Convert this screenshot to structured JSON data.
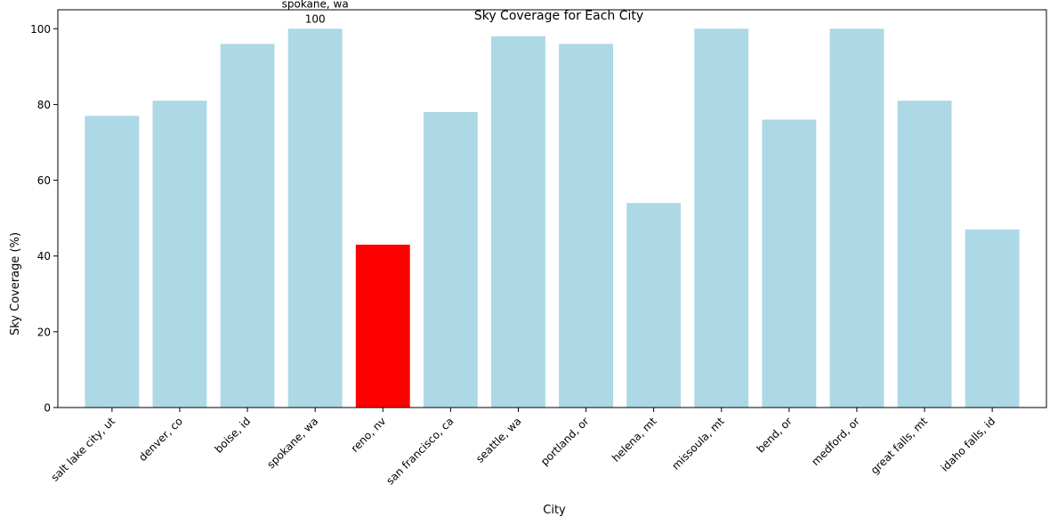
{
  "chart_data": {
    "type": "bar",
    "title": "Sky Coverage for Each City",
    "xlabel": "City",
    "ylabel": "Sky Coverage (%)",
    "ylim": [
      0,
      105
    ],
    "yticks": [
      0,
      20,
      40,
      60,
      80,
      100
    ],
    "grid": false,
    "categories": [
      "salt lake city, ut",
      "denver, co",
      "boise, id",
      "spokane, wa",
      "reno, nv",
      "san francisco, ca",
      "seattle, wa",
      "portland, or",
      "helena, mt",
      "missoula, mt",
      "bend, or",
      "medford, or",
      "great falls, mt",
      "idaho falls, id"
    ],
    "values": [
      77,
      81,
      96,
      100,
      43,
      78,
      98,
      96,
      54,
      100,
      76,
      100,
      81,
      47
    ],
    "colors": {
      "default": "#add8e6",
      "highlight": "#ff0000"
    },
    "highlight_index": 4,
    "annotation": {
      "category": "spokane, wa",
      "label": "spokane, wa",
      "value": 100
    }
  }
}
